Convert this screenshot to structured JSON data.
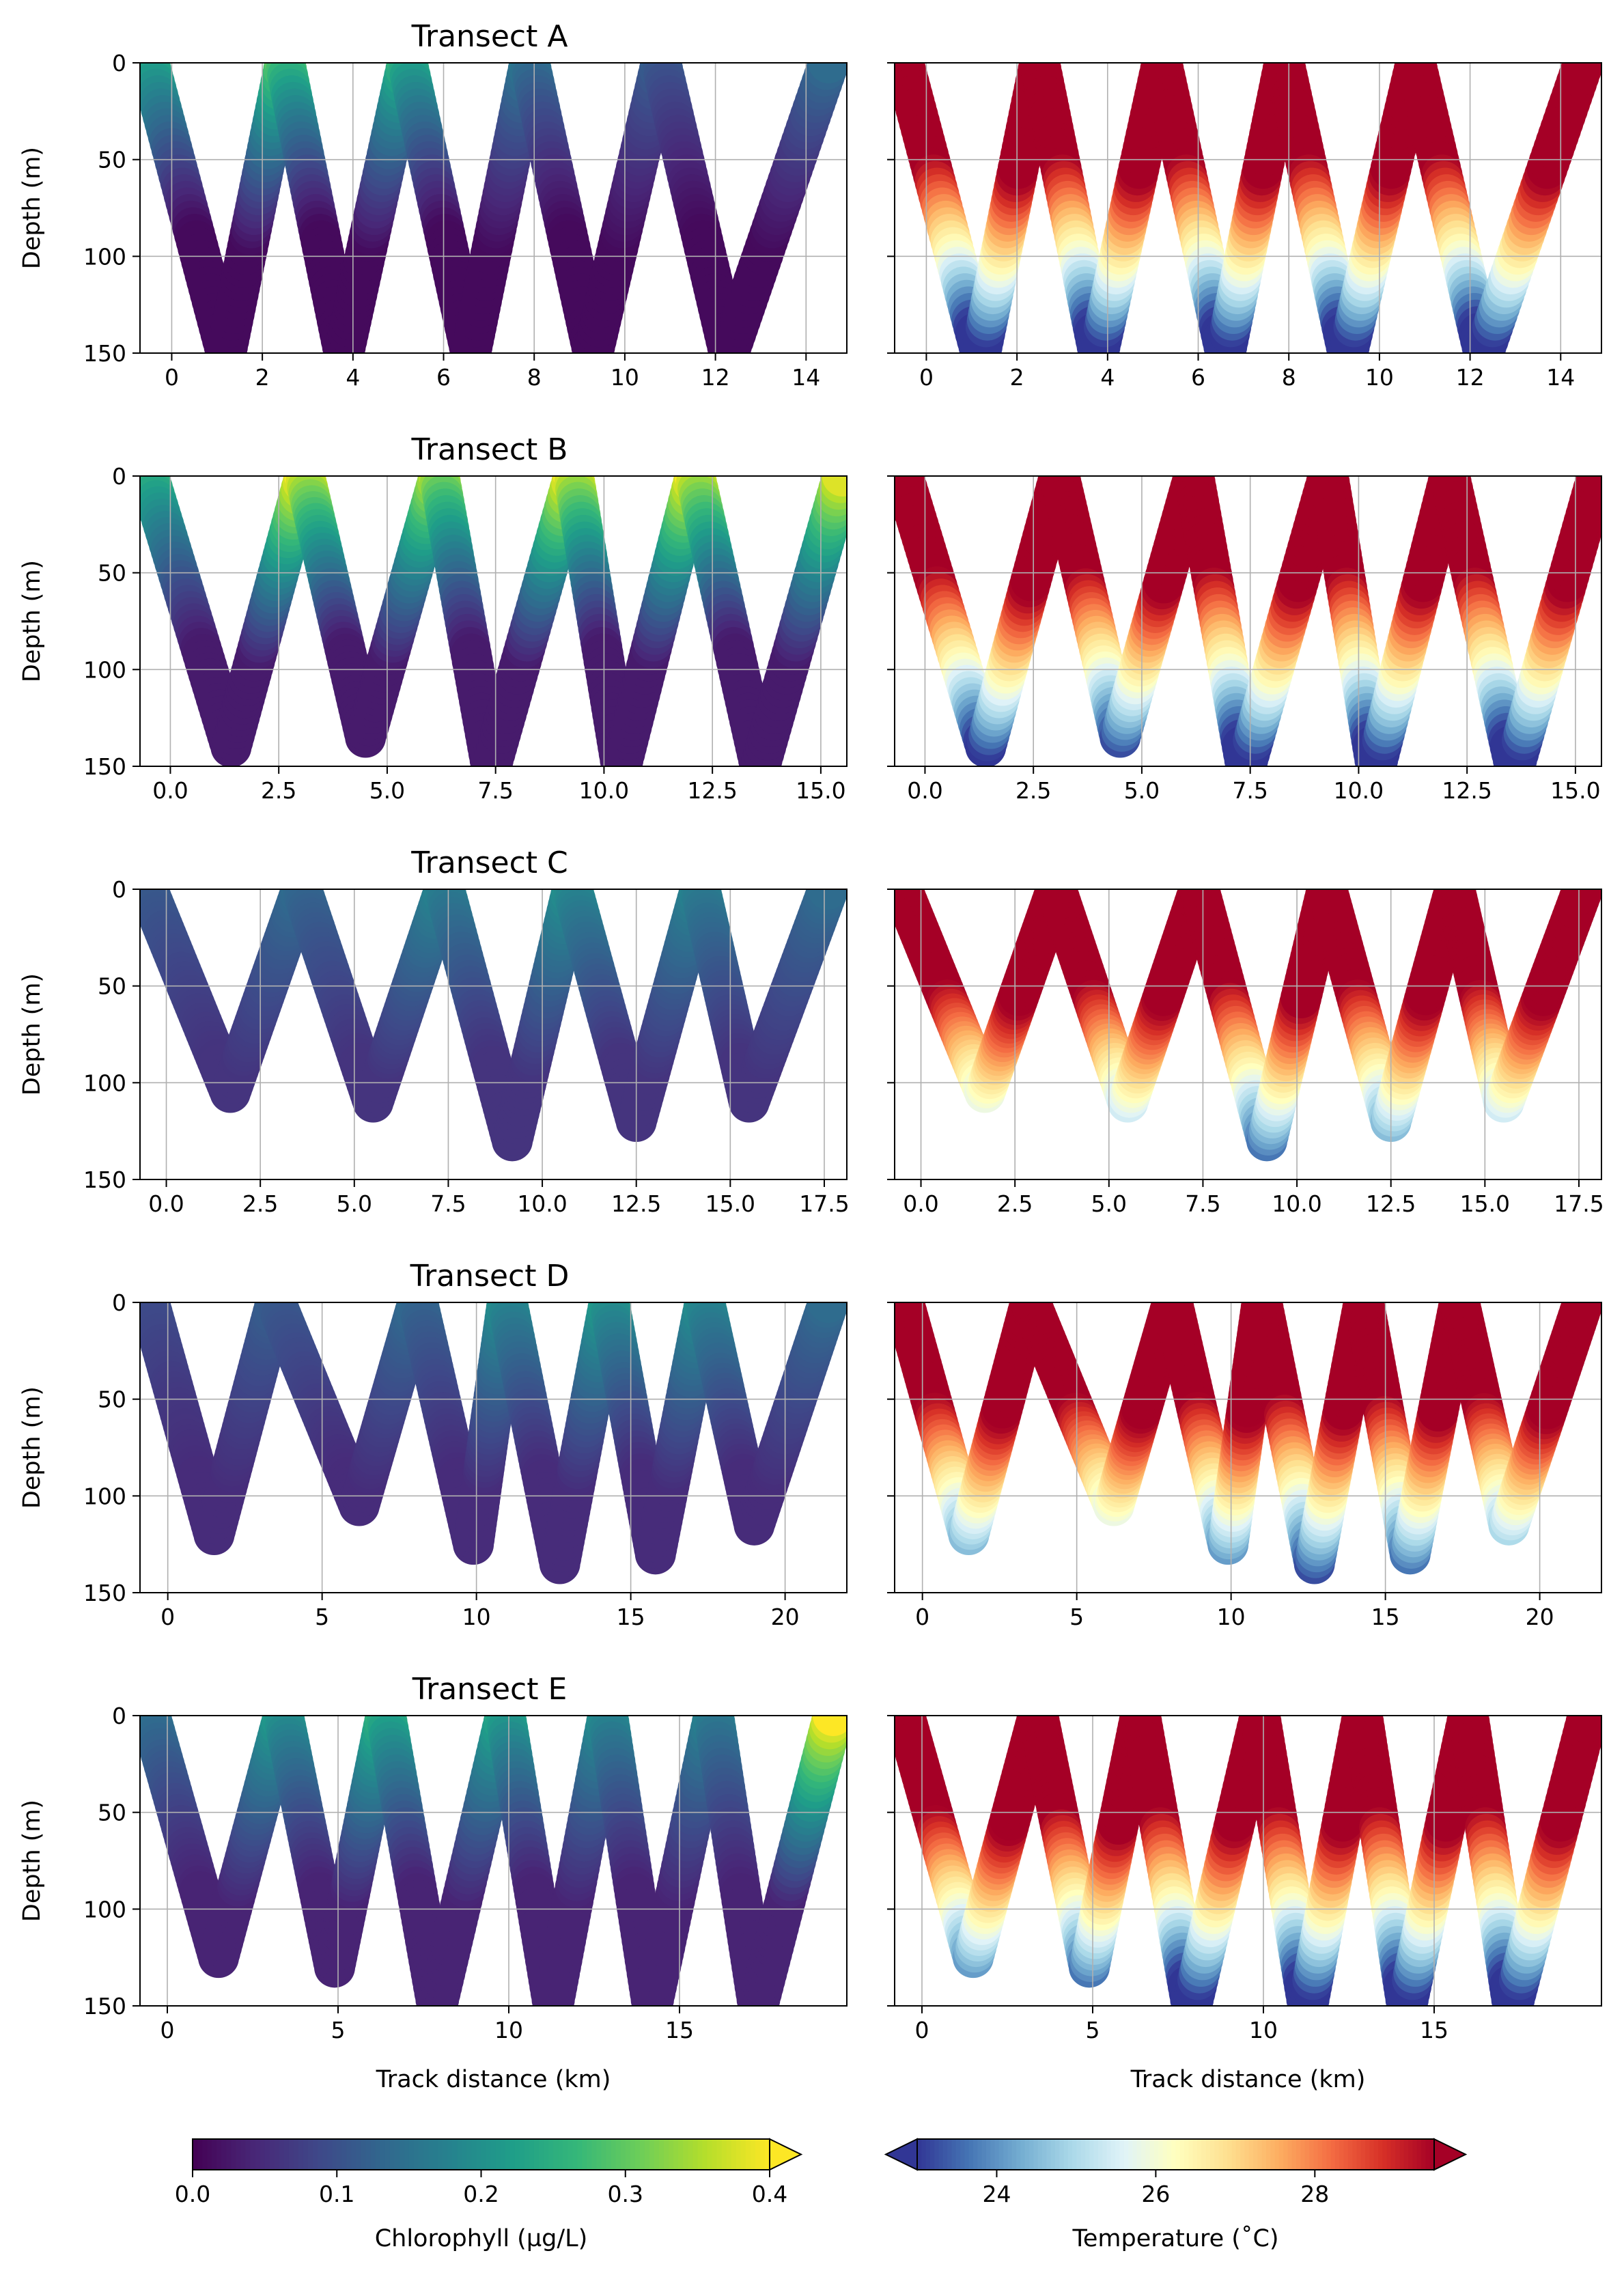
{
  "figure": {
    "ylabel": "Depth (m)",
    "xlabel": "Track distance (km)"
  },
  "colorbars": [
    {
      "label": "Chlorophyll (µg/L)",
      "ticks": [
        "0.0",
        "0.1",
        "0.2",
        "0.3",
        "0.4"
      ],
      "range": [
        0,
        0.4
      ],
      "extend": "max",
      "colormap": "viridis",
      "colors": [
        "#440154",
        "#482878",
        "#3e4989",
        "#31688e",
        "#26828e",
        "#1f9e89",
        "#35b779",
        "#6ece58",
        "#b5de2b",
        "#fde725"
      ]
    },
    {
      "label": "Temperature (˚C)",
      "ticks": [
        "24",
        "26",
        "28"
      ],
      "range": [
        23,
        29.5
      ],
      "extend": "both",
      "colormap": "RdYlBu_r",
      "colors": [
        "#313695",
        "#4575b4",
        "#74add1",
        "#abd9e9",
        "#e0f3f8",
        "#ffffbf",
        "#fee090",
        "#fdae61",
        "#f46d43",
        "#d73027",
        "#a50026"
      ]
    }
  ],
  "chart_data": [
    {
      "type": "scatter",
      "title": "Transect A",
      "variable": "chlorophyll",
      "xlim": [
        -0.7,
        14.9
      ],
      "ylim": [
        150,
        0
      ],
      "x_ticks": [
        "0",
        "2",
        "4",
        "6",
        "8",
        "10",
        "12",
        "14"
      ],
      "y_ticks": [
        "0",
        "50",
        "100",
        "150"
      ],
      "grid": true,
      "profile": {
        "surface_x": [
          -0.5,
          2.5,
          5.2,
          7.9,
          10.8,
          14.5
        ],
        "bottom_x": [
          1.2,
          3.8,
          6.6,
          9.3,
          12.3
        ],
        "bottom_depth": [
          150,
          150,
          150,
          150,
          150
        ]
      },
      "surface_chl": [
        0.26,
        0.3,
        0.26,
        0.16,
        0.12,
        0.14
      ],
      "deep_chl": 0.01
    },
    {
      "type": "scatter",
      "title": "",
      "variable": "temperature",
      "xlim": [
        -0.7,
        14.9
      ],
      "ylim": [
        150,
        0
      ],
      "x_ticks": [
        "0",
        "2",
        "4",
        "6",
        "8",
        "10",
        "12",
        "14"
      ],
      "y_ticks": [
        "0",
        "50",
        "100",
        "150"
      ],
      "grid": true,
      "profile": {
        "surface_x": [
          -0.5,
          2.5,
          5.2,
          7.9,
          10.8,
          14.5
        ],
        "bottom_x": [
          1.2,
          3.8,
          6.6,
          9.3,
          12.3
        ],
        "bottom_depth": [
          150,
          150,
          150,
          150,
          150
        ]
      }
    },
    {
      "type": "scatter",
      "title": "Transect B",
      "variable": "chlorophyll",
      "xlim": [
        -0.7,
        15.6
      ],
      "ylim": [
        150,
        0
      ],
      "x_ticks": [
        "0.0",
        "2.5",
        "5.0",
        "7.5",
        "10.0",
        "12.5",
        "15.0"
      ],
      "y_ticks": [
        "0",
        "50",
        "100",
        "150"
      ],
      "grid": true,
      "profile": {
        "surface_x": [
          -0.5,
          3.1,
          6.2,
          9.3,
          12.1,
          15.5
        ],
        "bottom_x": [
          1.4,
          4.5,
          7.4,
          10.4,
          13.6
        ],
        "bottom_depth": [
          140,
          135,
          150,
          150,
          150
        ]
      },
      "surface_chl": [
        0.28,
        0.4,
        0.36,
        0.4,
        0.4,
        0.38
      ],
      "deep_chl": 0.03
    },
    {
      "type": "scatter",
      "title": "",
      "variable": "temperature",
      "xlim": [
        -0.7,
        15.6
      ],
      "ylim": [
        150,
        0
      ],
      "x_ticks": [
        "0.0",
        "2.5",
        "5.0",
        "7.5",
        "10.0",
        "12.5",
        "15.0"
      ],
      "y_ticks": [
        "0",
        "50",
        "100",
        "150"
      ],
      "grid": true,
      "profile": {
        "surface_x": [
          -0.5,
          3.1,
          6.2,
          9.3,
          12.1,
          15.5
        ],
        "bottom_x": [
          1.4,
          4.5,
          7.4,
          10.4,
          13.6
        ],
        "bottom_depth": [
          140,
          135,
          150,
          150,
          150
        ]
      }
    },
    {
      "type": "scatter",
      "title": "Transect C",
      "variable": "chlorophyll",
      "xlim": [
        -0.7,
        18.1
      ],
      "ylim": [
        150,
        0
      ],
      "x_ticks": [
        "0.0",
        "2.5",
        "5.0",
        "7.5",
        "10.0",
        "12.5",
        "15.0",
        "17.5"
      ],
      "y_ticks": [
        "0",
        "50",
        "100",
        "150"
      ],
      "grid": true,
      "profile": {
        "surface_x": [
          -0.5,
          3.6,
          7.4,
          10.8,
          14.2,
          17.6
        ],
        "bottom_x": [
          1.7,
          5.5,
          9.2,
          12.5,
          15.5
        ],
        "bottom_depth": [
          105,
          110,
          130,
          120,
          110
        ]
      },
      "surface_chl": [
        0.12,
        0.14,
        0.18,
        0.2,
        0.18,
        0.14
      ],
      "deep_chl": 0.06
    },
    {
      "type": "scatter",
      "title": "",
      "variable": "temperature",
      "xlim": [
        -0.7,
        18.1
      ],
      "ylim": [
        150,
        0
      ],
      "x_ticks": [
        "0.0",
        "2.5",
        "5.0",
        "7.5",
        "10.0",
        "12.5",
        "15.0",
        "17.5"
      ],
      "y_ticks": [
        "0",
        "50",
        "100",
        "150"
      ],
      "grid": true,
      "profile": {
        "surface_x": [
          -0.5,
          3.6,
          7.4,
          10.8,
          14.2,
          17.6
        ],
        "bottom_x": [
          1.7,
          5.5,
          9.2,
          12.5,
          15.5
        ],
        "bottom_depth": [
          105,
          110,
          130,
          120,
          110
        ]
      }
    },
    {
      "type": "scatter",
      "title": "Transect D",
      "variable": "chlorophyll",
      "xlim": [
        -0.9,
        22.0
      ],
      "ylim": [
        150,
        0
      ],
      "x_ticks": [
        "0",
        "5",
        "10",
        "15",
        "20"
      ],
      "y_ticks": [
        "0",
        "50",
        "100",
        "150"
      ],
      "grid": true,
      "profile": {
        "surface_x": [
          -0.6,
          3.5,
          8.1,
          11.0,
          14.3,
          17.4,
          21.4
        ],
        "bottom_x": [
          1.5,
          6.2,
          9.9,
          12.7,
          15.8,
          19.0
        ],
        "bottom_depth": [
          120,
          105,
          125,
          135,
          130,
          115
        ]
      },
      "surface_chl": [
        0.1,
        0.12,
        0.14,
        0.2,
        0.22,
        0.2,
        0.14
      ],
      "deep_chl": 0.05
    },
    {
      "type": "scatter",
      "title": "",
      "variable": "temperature",
      "xlim": [
        -0.9,
        22.0
      ],
      "ylim": [
        150,
        0
      ],
      "x_ticks": [
        "0",
        "5",
        "10",
        "15",
        "20"
      ],
      "y_ticks": [
        "0",
        "50",
        "100",
        "150"
      ],
      "grid": true,
      "profile": {
        "surface_x": [
          -0.6,
          3.5,
          8.1,
          11.0,
          14.3,
          17.4,
          21.4
        ],
        "bottom_x": [
          1.5,
          6.2,
          9.9,
          12.7,
          15.8,
          19.0
        ],
        "bottom_depth": [
          120,
          105,
          125,
          135,
          130,
          115
        ]
      }
    },
    {
      "type": "scatter",
      "title": "Transect E",
      "variable": "chlorophyll",
      "xlim": [
        -0.8,
        19.9
      ],
      "ylim": [
        150,
        0
      ],
      "x_ticks": [
        "0",
        "5",
        "10",
        "15"
      ],
      "y_ticks": [
        "0",
        "50",
        "100",
        "150"
      ],
      "grid": true,
      "profile": {
        "surface_x": [
          -0.5,
          3.4,
          6.4,
          9.9,
          12.9,
          16.0,
          19.5
        ],
        "bottom_x": [
          1.5,
          4.9,
          7.9,
          11.3,
          14.2,
          17.3
        ],
        "bottom_depth": [
          125,
          130,
          150,
          150,
          150,
          150
        ]
      },
      "surface_chl": [
        0.16,
        0.22,
        0.26,
        0.24,
        0.2,
        0.18,
        0.4
      ],
      "deep_chl": 0.04
    },
    {
      "type": "scatter",
      "title": "",
      "variable": "temperature",
      "xlim": [
        -0.8,
        19.9
      ],
      "ylim": [
        150,
        0
      ],
      "x_ticks": [
        "0",
        "5",
        "10",
        "15"
      ],
      "y_ticks": [
        "0",
        "50",
        "100",
        "150"
      ],
      "grid": true,
      "profile": {
        "surface_x": [
          -0.5,
          3.4,
          6.4,
          9.9,
          12.9,
          16.0,
          19.5
        ],
        "bottom_x": [
          1.5,
          4.9,
          7.9,
          11.3,
          14.2,
          17.3
        ],
        "bottom_depth": [
          125,
          130,
          150,
          150,
          150,
          150
        ]
      }
    }
  ]
}
